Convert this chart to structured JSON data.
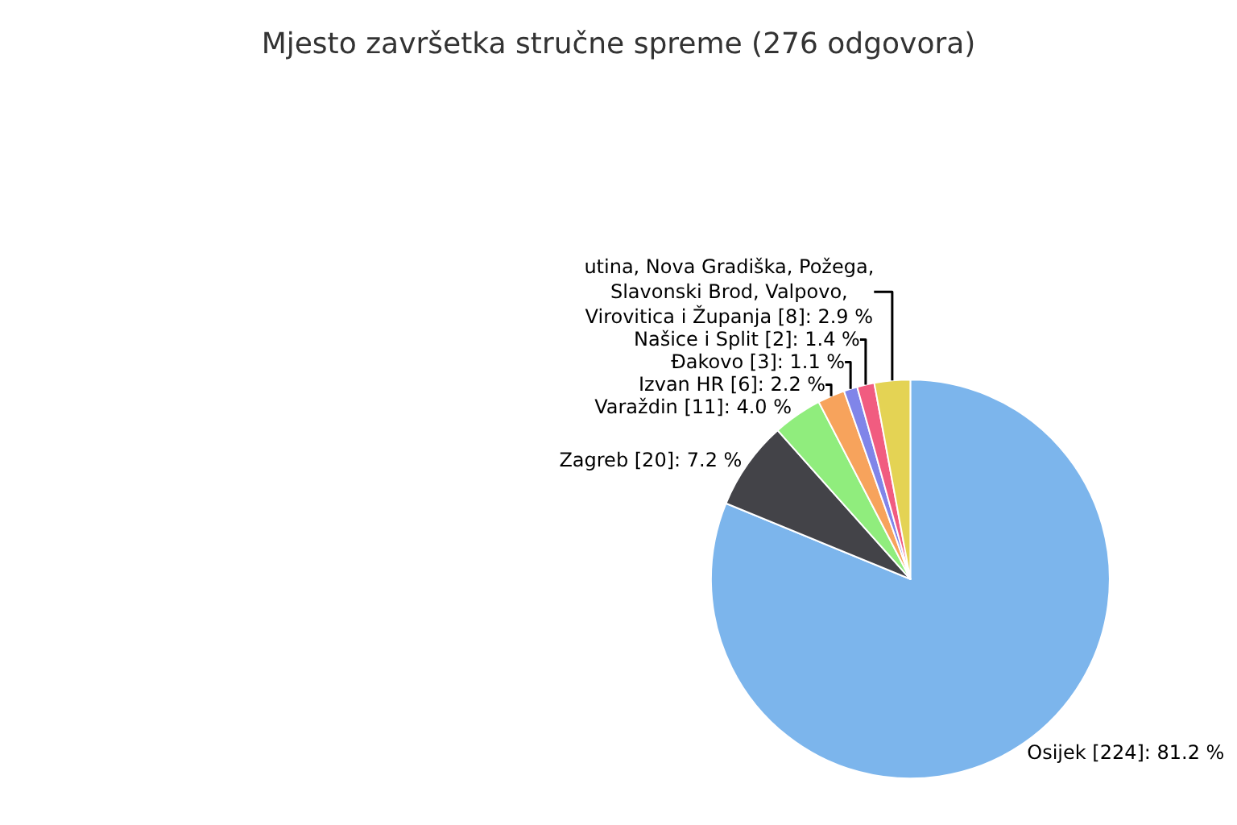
{
  "chart_data": {
    "type": "pie",
    "title": "Mjesto završetka stručne spreme (276 odgovora)",
    "categories": [
      "Osijek",
      "Zagreb",
      "Varaždin",
      "Izvan HR",
      "Đakovo",
      "Našice i Split",
      "utina, Nova Gradiška, Požega, Slavonski Brod, Valpovo, Virovitica i Županja"
    ],
    "values": [
      81.2,
      7.2,
      4.0,
      2.2,
      1.1,
      1.4,
      2.9
    ],
    "value_labels": [
      "[224]: 81.2 %",
      "[20]: 7.2 %",
      "[11]: 4.0 %",
      "[6]: 2.2 %",
      "[3]: 1.1 %",
      "[2]: 1.4 %",
      "[8]: 2.9 %"
    ],
    "colors": [
      "#7cb5ec",
      "#434348",
      "#90ed7d",
      "#f7a35c",
      "#8085e9",
      "#f15c80",
      "#e4d354"
    ],
    "legend": false
  }
}
